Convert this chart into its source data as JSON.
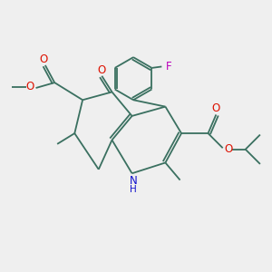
{
  "background_color": "#efefef",
  "bond_color": "#3a7060",
  "bond_width": 1.3,
  "o_color": "#dd1100",
  "n_color": "#1111cc",
  "f_color": "#bb00bb",
  "figsize": [
    3.0,
    3.0
  ],
  "dpi": 100,
  "xlim": [
    0,
    10
  ],
  "ylim": [
    0,
    10
  ]
}
